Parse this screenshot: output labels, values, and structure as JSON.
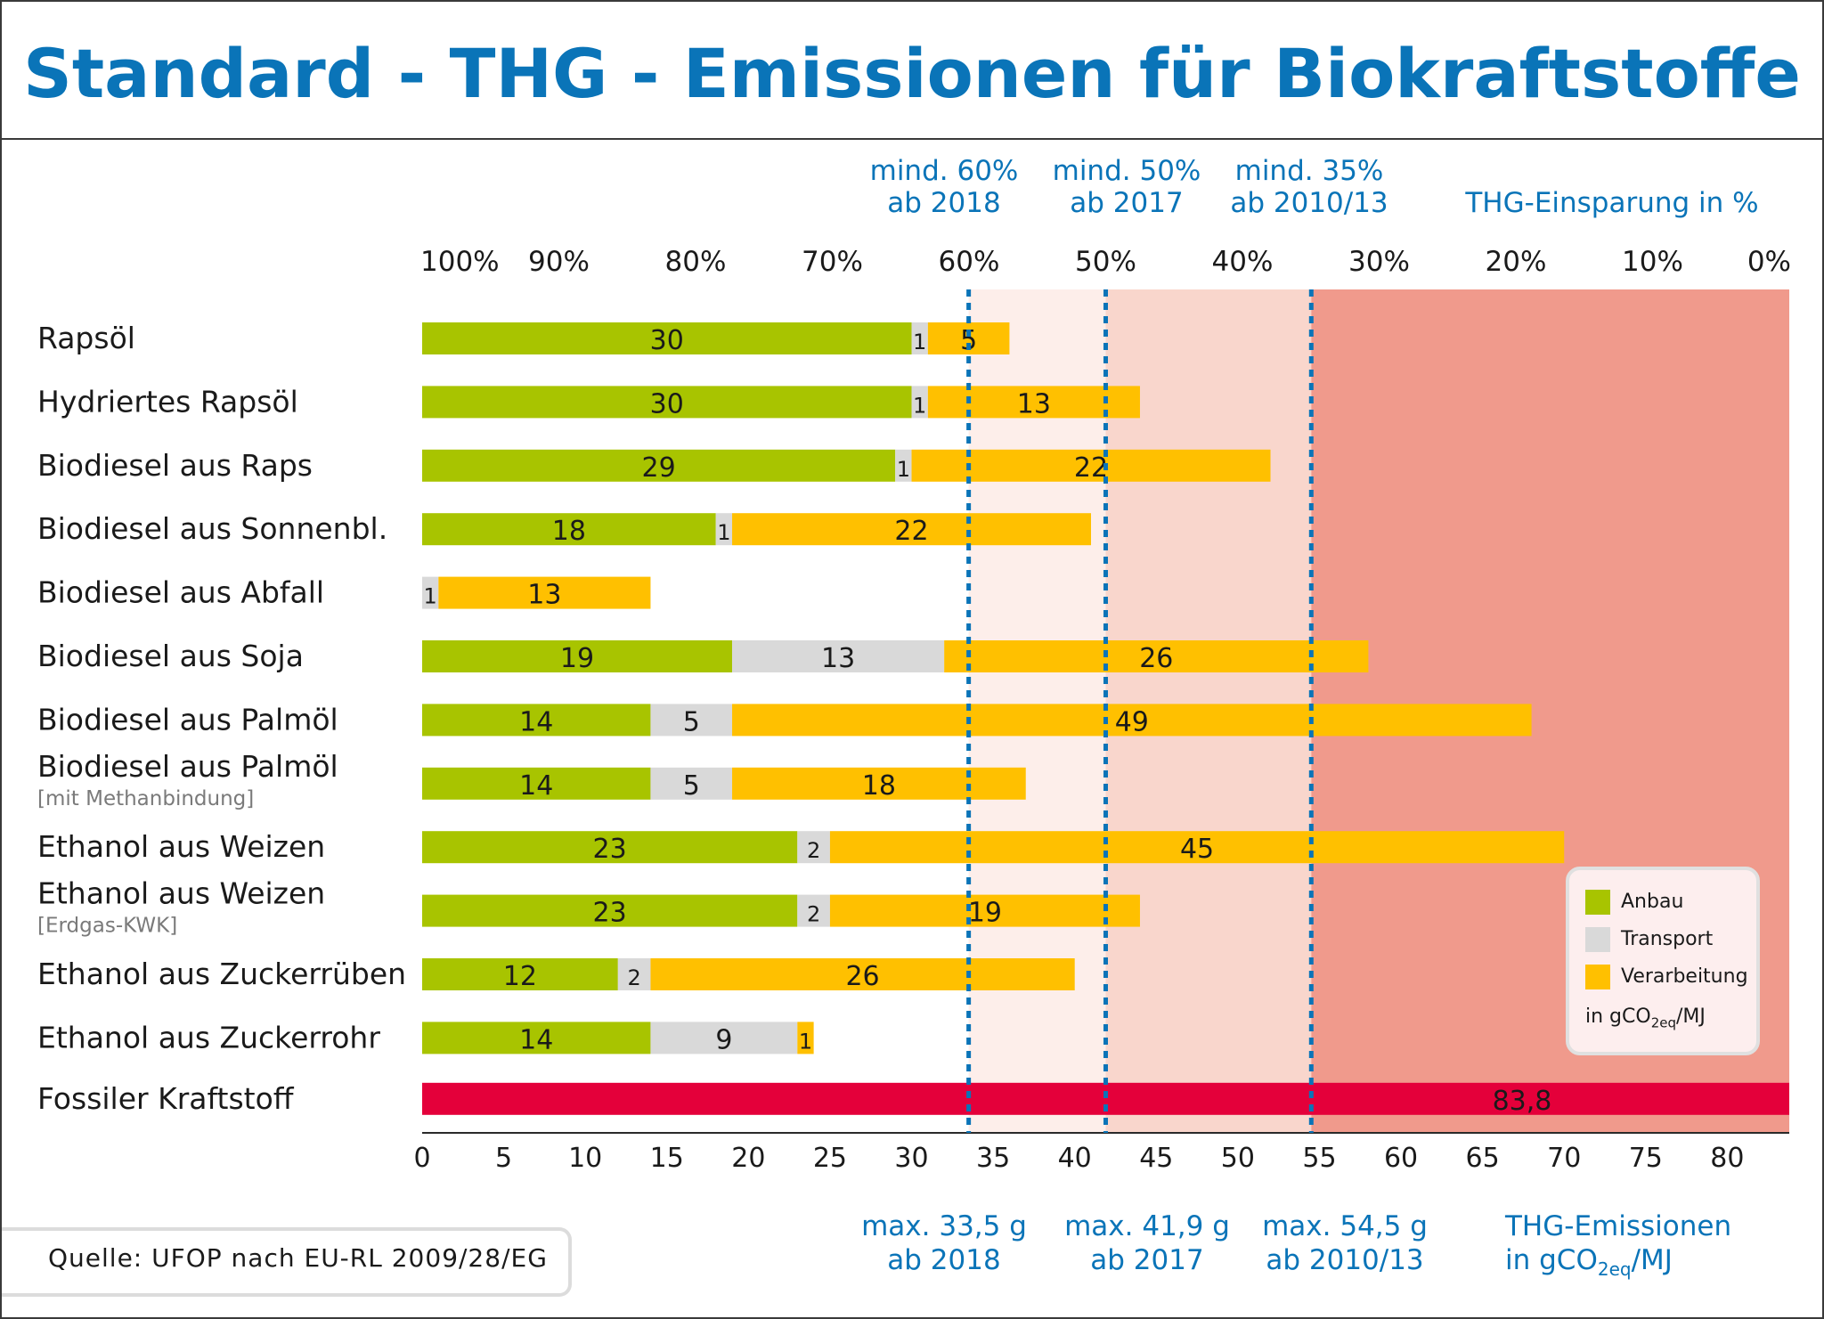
{
  "title": "Standard - THG - Emissionen für Biokraftstoffe",
  "source": "Quelle: UFOP nach EU-RL 2009/28/EG",
  "colors": {
    "title": "#0a74b8",
    "anbau": "#a8c400",
    "transport": "#d9d9d9",
    "verarbeitung": "#ffc000",
    "fossil": "#e4003a",
    "zone1": "#fdeeea",
    "zone2": "#f9d6cc",
    "zone3": "#f09a8c",
    "threshold_line": "#0a74b8"
  },
  "top_notes": [
    {
      "line1": "mind. 60%",
      "line2": "ab 2018"
    },
    {
      "line1": "mind. 50%",
      "line2": "ab 2017"
    },
    {
      "line1": "mind. 35%",
      "line2": "ab 2010/13"
    }
  ],
  "top_axis_title": "THG-Einsparung in %",
  "bottom_notes": [
    {
      "line1": "max. 33,5 g",
      "line2": "ab 2018"
    },
    {
      "line1": "max. 41,9 g",
      "line2": "ab 2017"
    },
    {
      "line1": "max. 54,5 g",
      "line2": "ab 2010/13"
    }
  ],
  "bottom_axis_title": {
    "line1": "THG-Emissionen",
    "line2_prefix": "in gCO",
    "line2_sub": "2eq",
    "line2_suffix": "/MJ"
  },
  "legend": {
    "items": [
      {
        "label": "Anbau",
        "key": "anbau"
      },
      {
        "label": "Transport",
        "key": "transport"
      },
      {
        "label": "Verarbeitung",
        "key": "verarbeitung"
      }
    ],
    "unit_prefix": "in gCO",
    "unit_sub": "2eq",
    "unit_suffix": "/MJ"
  },
  "chart_data": {
    "type": "bar",
    "orientation": "horizontal",
    "stacked": true,
    "title": "Standard - THG - Emissionen für Biokraftstoffe",
    "x_bottom_ticks": [
      0,
      5,
      10,
      15,
      20,
      25,
      30,
      35,
      40,
      45,
      50,
      55,
      60,
      65,
      70,
      75,
      80
    ],
    "x_top_ticks": [
      "100%",
      "90%",
      "80%",
      "70%",
      "60%",
      "50%",
      "40%",
      "30%",
      "20%",
      "10%",
      "0%"
    ],
    "xlim": [
      0,
      83.8
    ],
    "thresholds": [
      33.5,
      41.9,
      54.5
    ],
    "series_names": [
      "Anbau",
      "Transport",
      "Verarbeitung"
    ],
    "categories": [
      {
        "label": "Rapsöl",
        "sublabel": "",
        "values": [
          30,
          1,
          5
        ]
      },
      {
        "label": "Hydriertes Rapsöl",
        "sublabel": "",
        "values": [
          30,
          1,
          13
        ]
      },
      {
        "label": "Biodiesel aus Raps",
        "sublabel": "",
        "values": [
          29,
          1,
          22
        ]
      },
      {
        "label": "Biodiesel aus Sonnenbl.",
        "sublabel": "",
        "values": [
          18,
          1,
          22
        ]
      },
      {
        "label": "Biodiesel aus Abfall",
        "sublabel": "",
        "values": [
          0,
          1,
          13
        ]
      },
      {
        "label": "Biodiesel aus Soja",
        "sublabel": "",
        "values": [
          19,
          13,
          26
        ]
      },
      {
        "label": "Biodiesel aus Palmöl",
        "sublabel": "",
        "values": [
          14,
          5,
          49
        ]
      },
      {
        "label": "Biodiesel aus Palmöl",
        "sublabel": "[mit Methanbindung]",
        "values": [
          14,
          5,
          18
        ]
      },
      {
        "label": "Ethanol aus Weizen",
        "sublabel": "",
        "values": [
          23,
          2,
          45
        ]
      },
      {
        "label": "Ethanol aus Weizen",
        "sublabel": "[Erdgas-KWK]",
        "values": [
          23,
          2,
          19
        ]
      },
      {
        "label": "Ethanol aus Zuckerrüben",
        "sublabel": "",
        "values": [
          12,
          2,
          26
        ]
      },
      {
        "label": "Ethanol aus Zuckerrohr",
        "sublabel": "",
        "values": [
          14,
          9,
          1
        ]
      }
    ],
    "fossil": {
      "label": "Fossiler Kraftstoff",
      "value": 83.8,
      "value_label": "83,8"
    }
  }
}
